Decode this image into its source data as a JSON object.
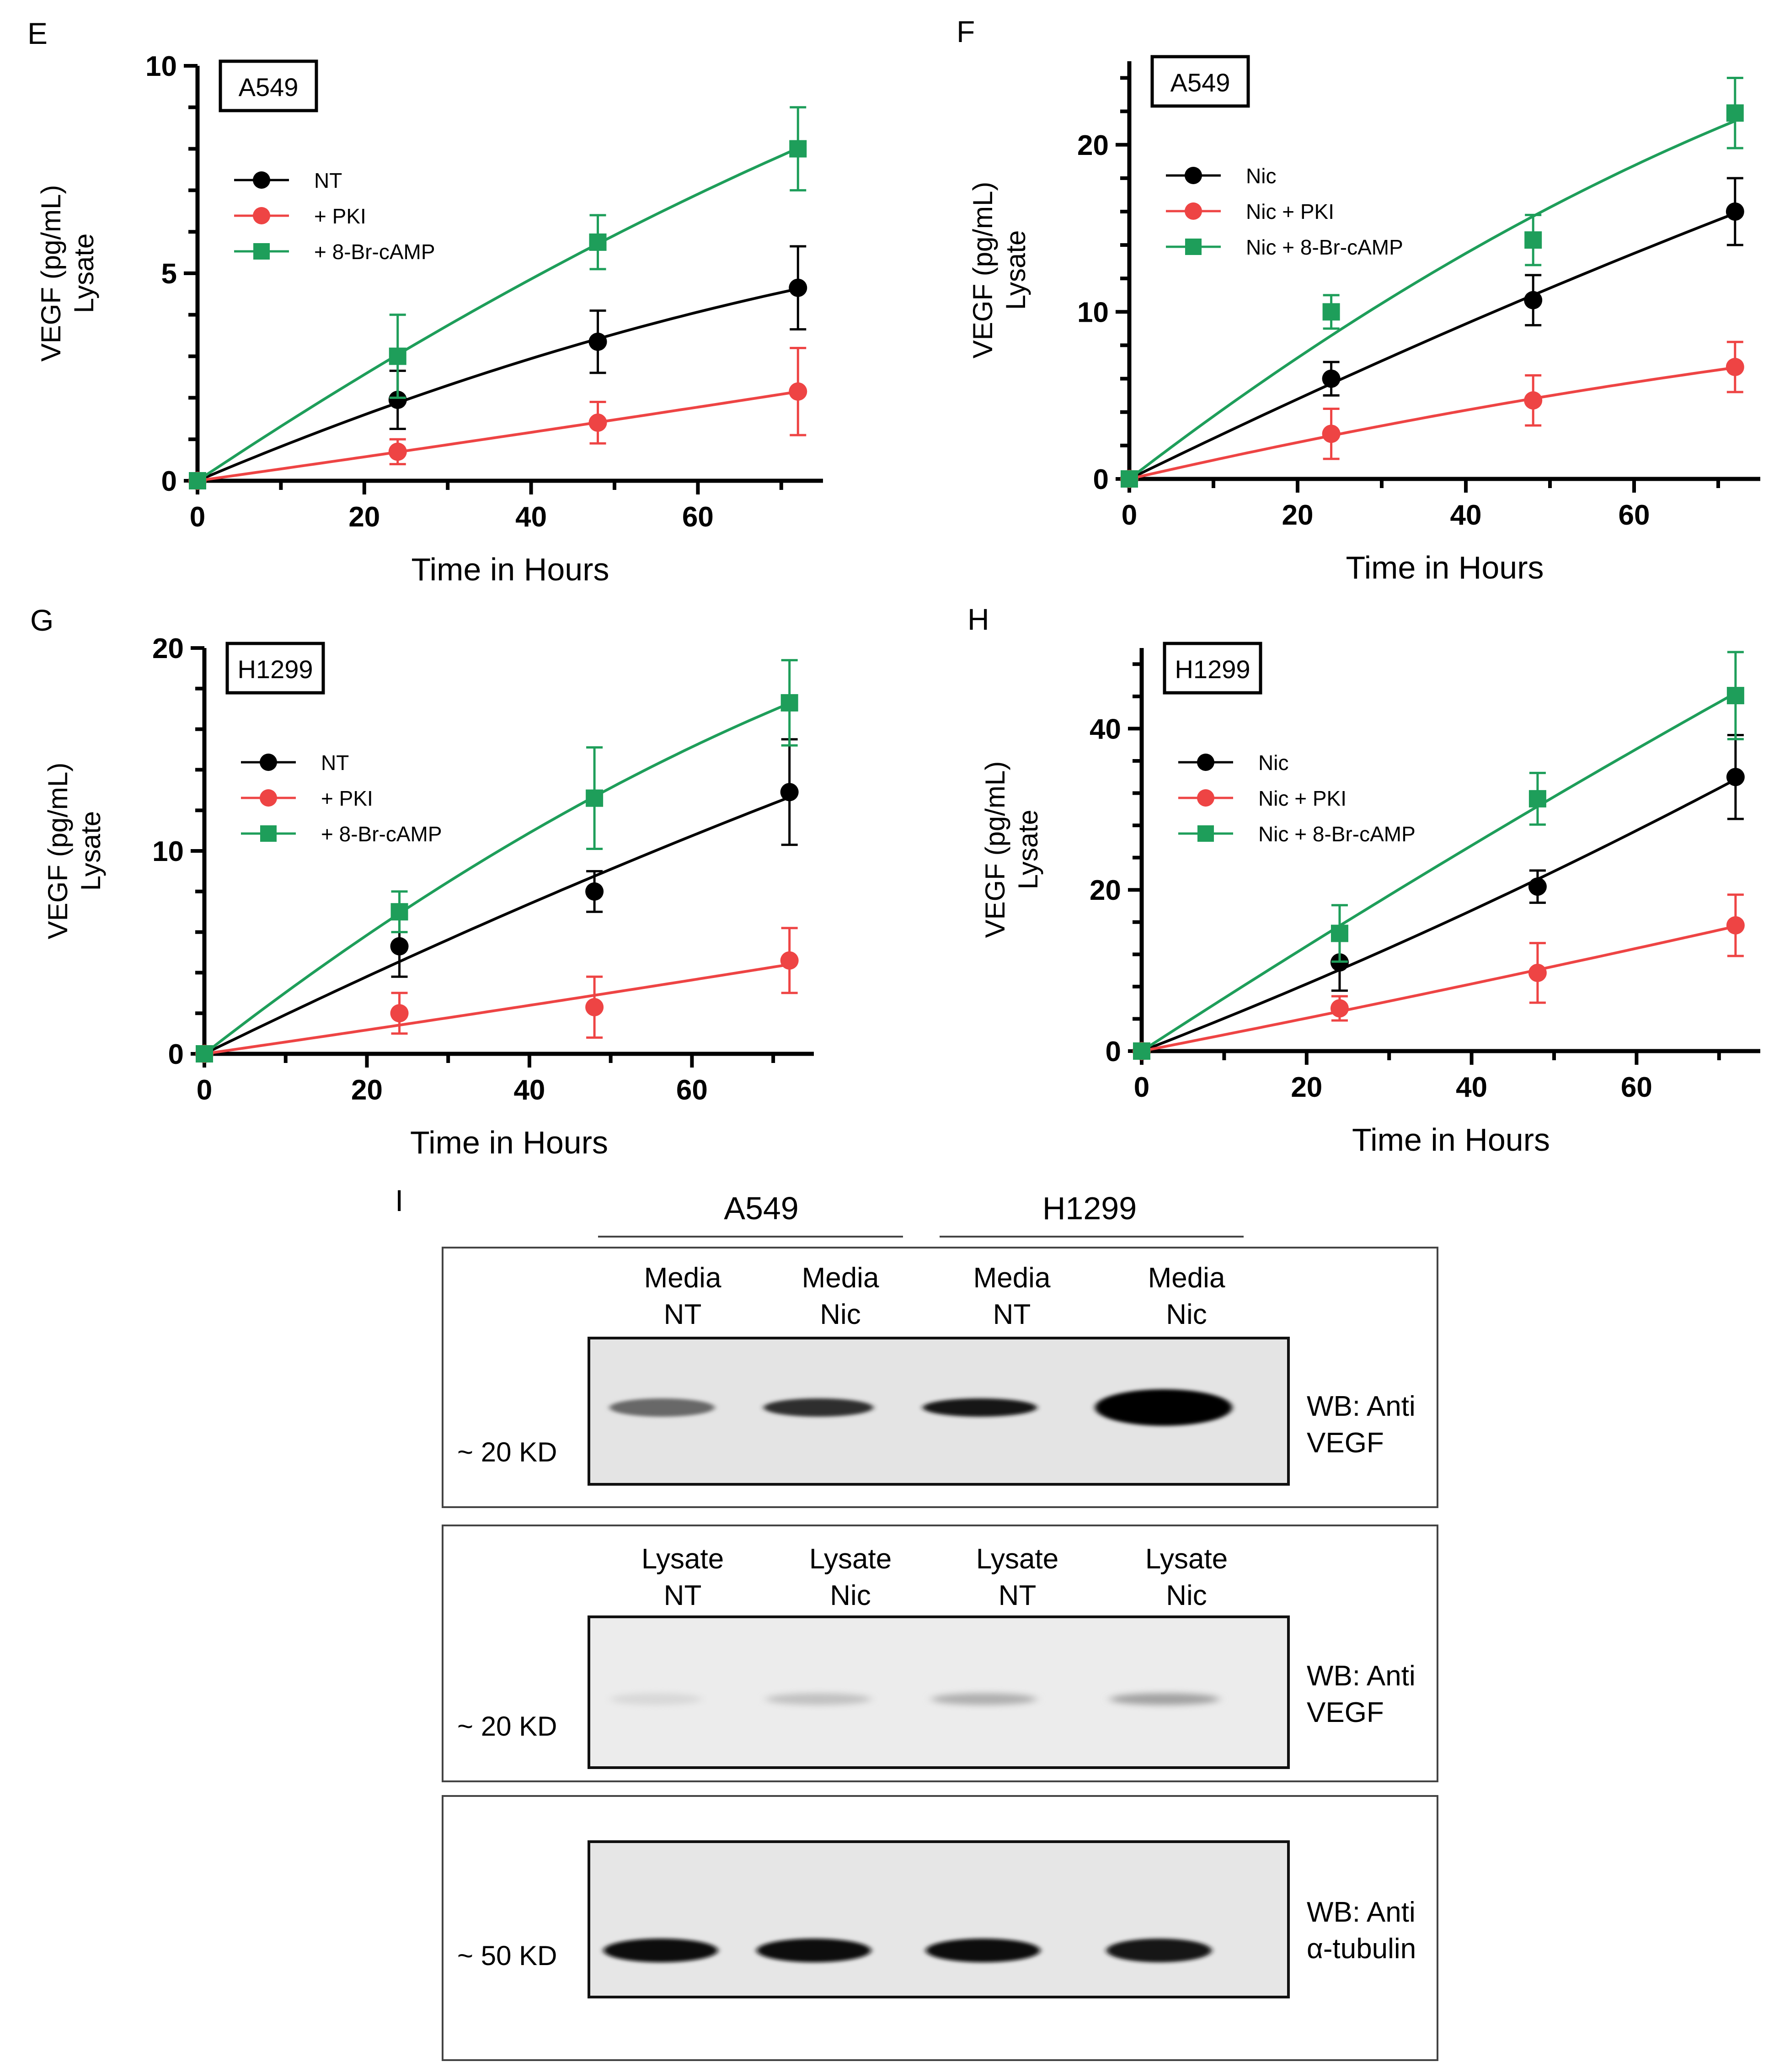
{
  "colors": {
    "nt": "#000000",
    "pki": "#ee4444",
    "camp": "#1e9e5a",
    "camp_dark": "#137a2e",
    "axis": "#000000"
  },
  "chart_data": [
    {
      "type": "line",
      "panel": "E",
      "cell_line": "A549",
      "xlabel": "Time in Hours",
      "ylabel": "VEGF (pg/mL)",
      "ylabel2": "Lysate",
      "xlim": [
        0,
        75
      ],
      "ylim": [
        0,
        10
      ],
      "xticks": [
        0,
        20,
        40,
        60
      ],
      "yticks": [
        0,
        5,
        10
      ],
      "legend_position": "top-left",
      "series": [
        {
          "name": "NT",
          "color": "#000000",
          "marker": "circle",
          "x": [
            0,
            24,
            48,
            72
          ],
          "y": [
            0,
            1.95,
            3.35,
            4.65
          ],
          "err": [
            0.05,
            0.7,
            0.75,
            1.0
          ]
        },
        {
          "name": "+ PKI",
          "color": "#ee4444",
          "marker": "circle",
          "x": [
            0,
            24,
            48,
            72
          ],
          "y": [
            0,
            0.7,
            1.4,
            2.15
          ],
          "err": [
            0.05,
            0.3,
            0.5,
            1.05
          ]
        },
        {
          "name": "+ 8-Br-cAMP",
          "color": "#1e9e5a",
          "marker": "square",
          "x": [
            0,
            24,
            48,
            72
          ],
          "y": [
            0,
            3.0,
            5.75,
            8.0
          ],
          "err": [
            0.05,
            1.0,
            0.65,
            1.0
          ]
        }
      ]
    },
    {
      "type": "line",
      "panel": "F",
      "cell_line": "A549",
      "xlabel": "Time in Hours",
      "ylabel": "VEGF (pg/mL)",
      "ylabel2": "Lysate",
      "xlim": [
        0,
        75
      ],
      "ylim": [
        0,
        25
      ],
      "xticks": [
        0,
        20,
        40,
        60
      ],
      "yticks": [
        0,
        10,
        20
      ],
      "legend_position": "top-left",
      "series": [
        {
          "name": "Nic",
          "color": "#000000",
          "marker": "circle",
          "x": [
            0,
            24,
            48,
            72
          ],
          "y": [
            0,
            6.0,
            10.7,
            16.0
          ],
          "err": [
            0.1,
            1.0,
            1.5,
            2.0
          ]
        },
        {
          "name": "Nic + PKI",
          "color": "#ee4444",
          "marker": "circle",
          "x": [
            0,
            24,
            48,
            72
          ],
          "y": [
            0,
            2.7,
            4.7,
            6.7
          ],
          "err": [
            0.1,
            1.5,
            1.5,
            1.5
          ]
        },
        {
          "name": "Nic + 8-Br-cAMP",
          "color": "#1e9e5a",
          "marker": "square",
          "x": [
            0,
            24,
            48,
            72
          ],
          "y": [
            0,
            10.0,
            14.3,
            21.9
          ],
          "err": [
            0.1,
            1.0,
            1.5,
            2.1
          ]
        }
      ]
    },
    {
      "type": "line",
      "panel": "G",
      "cell_line": "H1299",
      "xlabel": "Time in Hours",
      "ylabel": "VEGF (pg/mL)",
      "ylabel2": "Lysate",
      "xlim": [
        0,
        75
      ],
      "ylim": [
        0,
        20
      ],
      "xticks": [
        0,
        20,
        40,
        60
      ],
      "yticks": [
        0,
        10,
        20
      ],
      "legend_position": "top-left",
      "series": [
        {
          "name": "NT",
          "color": "#000000",
          "marker": "circle",
          "x": [
            0,
            24,
            48,
            72
          ],
          "y": [
            0,
            5.3,
            8.0,
            12.9
          ],
          "err": [
            0.1,
            1.5,
            1.0,
            2.6
          ]
        },
        {
          "name": "+ PKI",
          "color": "#ee4444",
          "marker": "circle",
          "x": [
            0,
            24,
            48,
            72
          ],
          "y": [
            0,
            2.0,
            2.3,
            4.6
          ],
          "err": [
            0.1,
            1.0,
            1.5,
            1.6
          ]
        },
        {
          "name": "+ 8-Br-cAMP",
          "color": "#1e9e5a",
          "marker": "square",
          "x": [
            0,
            24,
            48,
            72
          ],
          "y": [
            0,
            7.0,
            12.6,
            17.3
          ],
          "err": [
            0.1,
            1.0,
            2.5,
            2.1
          ]
        }
      ]
    },
    {
      "type": "line",
      "panel": "H",
      "cell_line": "H1299",
      "xlabel": "Time in Hours",
      "ylabel": "VEGF (pg/mL)",
      "ylabel2": "Lysate",
      "xlim": [
        0,
        75
      ],
      "ylim": [
        0,
        50
      ],
      "xticks": [
        0,
        20,
        40,
        60
      ],
      "yticks": [
        0,
        20,
        40
      ],
      "legend_position": "top-left",
      "series": [
        {
          "name": "Nic",
          "color": "#000000",
          "marker": "circle",
          "x": [
            0,
            24,
            48,
            72
          ],
          "y": [
            0,
            11.0,
            20.4,
            34.0
          ],
          "err": [
            0.2,
            3.5,
            2.0,
            5.2
          ]
        },
        {
          "name": "Nic + PKI",
          "color": "#ee4444",
          "marker": "circle",
          "x": [
            0,
            24,
            48,
            72
          ],
          "y": [
            0,
            5.3,
            9.7,
            15.6
          ],
          "err": [
            0.2,
            1.5,
            3.7,
            3.8
          ]
        },
        {
          "name": "Nic + 8-Br-cAMP",
          "color": "#1e9e5a",
          "marker": "square",
          "x": [
            0,
            24,
            48,
            72
          ],
          "y": [
            0,
            14.6,
            31.3,
            44.1
          ],
          "err": [
            0.2,
            3.5,
            3.2,
            5.4
          ]
        }
      ]
    }
  ],
  "western": {
    "panel_letter": "I",
    "group_a549": "A549",
    "group_h1299": "H1299",
    "blots": [
      {
        "lanes": [
          [
            "Media",
            "NT"
          ],
          [
            "Media",
            "Nic"
          ],
          [
            "Media",
            "NT"
          ],
          [
            "Media",
            "Nic"
          ]
        ],
        "marker": "~ 20 KD",
        "wb_line1": "WB: Anti",
        "wb_line2": "VEGF",
        "band_intensity": [
          0.55,
          0.8,
          0.9,
          1.0
        ]
      },
      {
        "lanes": [
          [
            "Lysate",
            "NT"
          ],
          [
            "Lysate",
            "Nic"
          ],
          [
            "Lysate",
            "NT"
          ],
          [
            "Lysate",
            "Nic"
          ]
        ],
        "marker": "~ 20 KD",
        "wb_line1": "WB: Anti",
        "wb_line2": "VEGF",
        "band_intensity": [
          0.06,
          0.16,
          0.24,
          0.3
        ]
      },
      {
        "lanes": [],
        "marker": "~ 50 KD",
        "wb_line1": "WB: Anti",
        "wb_line2": "α-tubulin",
        "band_intensity": [
          0.97,
          0.93,
          0.95,
          0.9
        ]
      }
    ]
  }
}
